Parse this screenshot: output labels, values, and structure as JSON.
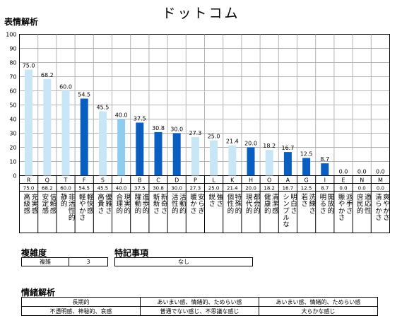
{
  "title": "ドットコム",
  "sections": {
    "expression": "表情解析",
    "complexity": "複雑度",
    "special": "特記事項",
    "emotion": "情緒解析"
  },
  "complexity": {
    "label": "複雑",
    "value": "3"
  },
  "special_note": "なし",
  "emotion_table": [
    [
      "長期的",
      "あいまい感、情緒的、ためらい感",
      "あいまい感、情緒的、ためらい感"
    ],
    [
      "不透明感、神秘的、哀感",
      "普通でない感じ、不思議な感じ",
      "大らかな感じ"
    ]
  ],
  "colors": {
    "light": "#c8e6f6",
    "mid": "#8fcdee",
    "dark": "#0a5ec0",
    "grid": "#b4b4b4"
  },
  "chart_data": {
    "type": "bar",
    "ylim": [
      0,
      100
    ],
    "yticks": [
      0,
      10,
      20,
      30,
      40,
      50,
      60,
      70,
      80,
      90,
      100
    ],
    "categories": [
      "R",
      "Q",
      "T",
      "F",
      "S",
      "J",
      "B",
      "C",
      "D",
      "P",
      "L",
      "K",
      "H",
      "O",
      "A",
      "G",
      "I",
      "E",
      "N",
      "M"
    ],
    "values": [
      75.0,
      68.2,
      60.0,
      54.5,
      45.5,
      40.0,
      37.5,
      30.8,
      30.0,
      27.3,
      25.0,
      21.4,
      20.0,
      18.2,
      16.7,
      12.5,
      8.7,
      0.0,
      0.0,
      0.0
    ],
    "value_labels": [
      "75.0",
      "68.2",
      "60.0",
      "54.5",
      "45.5",
      "40.0",
      "37.5",
      "30.8",
      "30.0",
      "27.3",
      "25.0",
      "21.4",
      "20.0",
      "18.2",
      "16.7",
      "12.5",
      "8.7",
      "0.0",
      "0.0",
      "0.0"
    ],
    "shades": [
      "light",
      "light",
      "light",
      "dark",
      "light",
      "mid",
      "dark",
      "dark",
      "dark",
      "light",
      "light",
      "light",
      "dark",
      "light",
      "dark",
      "dark",
      "dark",
      "light",
      "light",
      "light"
    ],
    "descriptions": [
      [
        "充実感",
        "高級感"
      ],
      [
        "信頼感",
        "安定感"
      ],
      [
        "非活性的",
        "静的"
      ],
      [
        "軽快感",
        "軽やかさ"
      ],
      [
        "優雅さ",
        "高貴さ"
      ],
      [
        "現実的",
        "合理的"
      ],
      [
        "進歩的",
        "躍動的"
      ],
      [
        "新奇さ",
        "斬新さ"
      ],
      [
        "活動的",
        "活性的"
      ],
      [
        "安らぎ",
        "暖かさ"
      ],
      [
        "強さ",
        "鋭さ"
      ],
      [
        "特殊的",
        "個性的"
      ],
      [
        "都会的",
        "現代的"
      ],
      [
        "清潔感",
        "健康的"
      ],
      [
        "明白さ",
        "シンプルな"
      ],
      [
        "洗練さ",
        "若さ"
      ],
      [
        "開放的",
        "明るさ"
      ],
      [
        "派手さ",
        "賑やかさ"
      ],
      [
        "適応性",
        "庶民的"
      ],
      [
        "爽やかさ",
        "清らかさ"
      ]
    ]
  }
}
